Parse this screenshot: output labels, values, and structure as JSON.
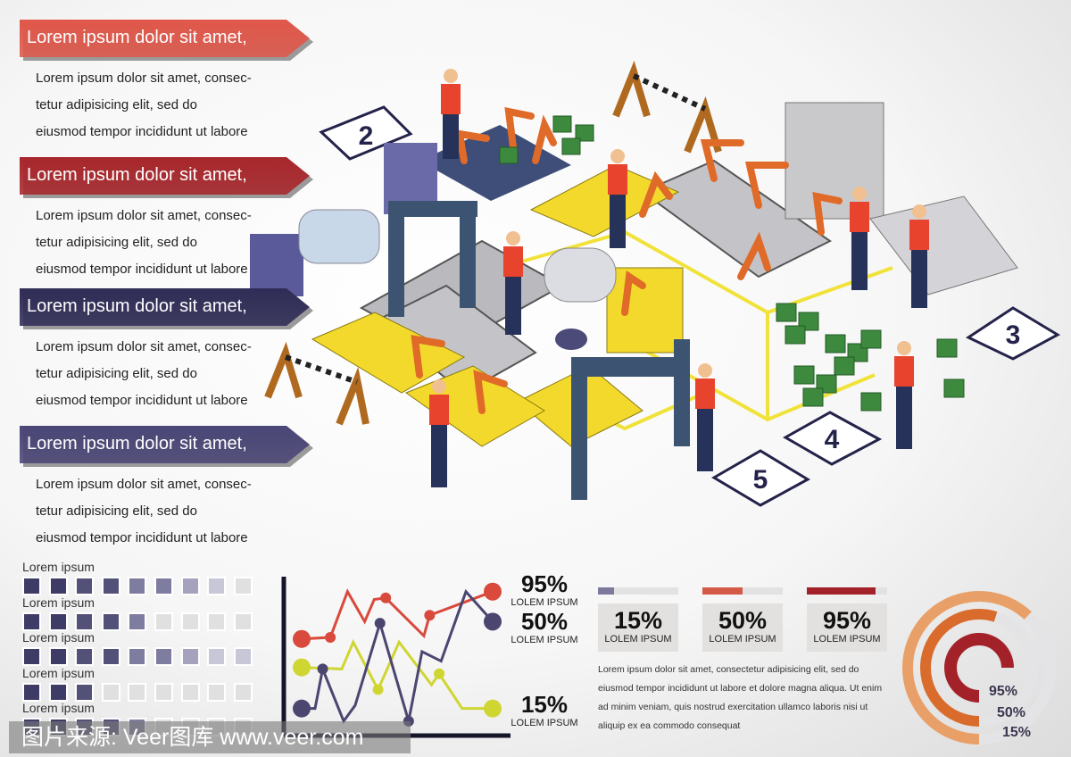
{
  "colors": {
    "banner1": "#e0574a",
    "banner2": "#a8262b",
    "banner3": "#2f2c56",
    "banner4": "#4a4676",
    "red": "#d9493c",
    "navy": "#4a4670",
    "lime": "#cfd632",
    "orange_light": "#e8a068",
    "orange": "#d96c2c",
    "dark_red": "#a3222a",
    "floor_line": "#f1e23a",
    "crate": "#3d8a3e",
    "machine_yellow": "#f2d92c",
    "machine_blue": "#3e4e78"
  },
  "sections": [
    {
      "title": "Lorem ipsum dolor sit amet,",
      "lines": [
        "Lorem ipsum dolor sit amet, consec-",
        "tetur adipisicing elit, sed do",
        "eiusmod tempor incididunt ut labore"
      ]
    },
    {
      "title": "Lorem ipsum dolor sit amet,",
      "lines": [
        "Lorem ipsum dolor sit amet, consec-",
        "tetur adipisicing elit, sed do",
        "eiusmod tempor incididunt ut labore"
      ]
    },
    {
      "title": "Lorem ipsum dolor sit amet,",
      "lines": [
        "Lorem ipsum dolor sit amet, consec-",
        "tetur adipisicing elit, sed do",
        "eiusmod tempor incididunt ut labore"
      ]
    },
    {
      "title": "Lorem ipsum dolor sit amet,",
      "lines": [
        "Lorem ipsum dolor sit amet, consec-",
        "tetur adipisicing elit, sed do",
        "eiusmod tempor incididunt ut labore"
      ]
    }
  ],
  "station_numbers": [
    "2",
    "3",
    "4",
    "5"
  ],
  "square_rating": {
    "total": 9,
    "rows": [
      {
        "label": "Lorem ipsum",
        "filled": 8
      },
      {
        "label": "Lorem ipsum",
        "filled": 5
      },
      {
        "label": "Lorem ipsum",
        "filled": 9
      },
      {
        "label": "Lorem ipsum",
        "filled": 3
      },
      {
        "label": "Lorem ipsum",
        "filled": 5
      }
    ]
  },
  "chart_data": {
    "type": "line",
    "title": "",
    "xlabel": "",
    "ylabel": "",
    "xlim": [
      0,
      100
    ],
    "ylim": [
      0,
      100
    ],
    "grid": false,
    "series": [
      {
        "color": "#d9493c",
        "x": [
          0,
          15,
          24,
          33,
          38,
          44,
          64,
          67,
          100
        ],
        "y": [
          60,
          61,
          90,
          71,
          85,
          86,
          62,
          75,
          90
        ],
        "markers": [
          0,
          1,
          5,
          7,
          8
        ]
      },
      {
        "color": "#cfd632",
        "x": [
          0,
          21,
          27,
          40,
          51,
          68,
          72,
          84,
          100
        ],
        "y": [
          42,
          41,
          58,
          28,
          58,
          31,
          38,
          16,
          16
        ],
        "markers": [
          0,
          3,
          6,
          8
        ]
      },
      {
        "color": "#4a4670",
        "x": [
          0,
          7,
          11,
          22,
          28,
          41,
          56,
          63,
          73,
          86,
          100
        ],
        "y": [
          16,
          16,
          41,
          8,
          18,
          70,
          8,
          52,
          46,
          90,
          71
        ],
        "markers": [
          0,
          2,
          5,
          6,
          10
        ]
      }
    ],
    "end_labels": [
      {
        "value": "95%",
        "label": "LOLEM IPSUM"
      },
      {
        "value": "50%",
        "label": "LOLEM IPSUM"
      },
      {
        "value": "15%",
        "label": "LOLEM IPSUM"
      }
    ]
  },
  "progress_cards": [
    {
      "value": "15%",
      "label": "LOLEM IPSUM",
      "fill": 0.2,
      "color": "#7c7a9c"
    },
    {
      "value": "50%",
      "label": "LOLEM IPSUM",
      "fill": 0.5,
      "color": "#d45a48"
    },
    {
      "value": "95%",
      "label": "LOLEM IPSUM",
      "fill": 0.85,
      "color": "#a3222a"
    }
  ],
  "description": "Lorem ipsum dolor sit amet, consectetur adipisicing elit, sed do eiusmod tempor incididunt ut labore et dolore magna aliqua. Ut enim ad minim veniam, quis nostrud exercitation ullamco laboris nisi ut aliquip ex ea commodo consequat",
  "rings": [
    {
      "label": "95%",
      "fill": 0.75,
      "color": "#a3222a"
    },
    {
      "label": "50%",
      "fill": 0.55,
      "color": "#d96c2c"
    },
    {
      "label": "15%",
      "fill": 0.62,
      "color": "#e8a068"
    }
  ],
  "watermark": "图片来源: Veer图库 www.veer.com"
}
